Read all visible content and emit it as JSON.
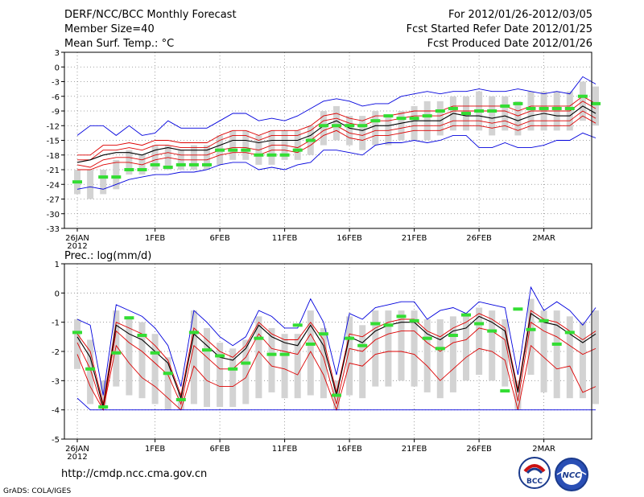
{
  "header": {
    "title": "DERF/NCC/BCC Monthly Forecast",
    "member_size": "Member Size=40",
    "variable": "Mean Surf. Temp.: °C",
    "period": "For 2012/01/26-2012/03/05",
    "started": "Fcst Started Refer Date 2012/01/25",
    "produced": "Fcst Produced Date 2012/01/26"
  },
  "footer": {
    "url": "http://cmdp.ncc.cma.gov.cn",
    "credit": "GrADS: COLA/IGES",
    "logo_bcc_text": "BCC",
    "logo_ncc_text": "NCC"
  },
  "colors": {
    "max_min": "#0000dd",
    "pct": "#dd0000",
    "mean": "#000000",
    "obs": "#33dd33",
    "box": "#d3d3d3",
    "grid": "#888888"
  },
  "chart_data": [
    {
      "type": "line",
      "title": "Mean Surf. Temp.: °C",
      "ylim": [
        -33,
        3
      ],
      "yticks": [
        3,
        0,
        -3,
        -6,
        -9,
        -12,
        -15,
        -18,
        -21,
        -24,
        -27,
        -30,
        -33
      ],
      "xticks": [
        {
          "day": 0,
          "label": "26JAN",
          "sub": "2012"
        },
        {
          "day": 6,
          "label": "1FEB"
        },
        {
          "day": 11,
          "label": "6FEB"
        },
        {
          "day": 16,
          "label": "11FEB"
        },
        {
          "day": 21,
          "label": "16FEB"
        },
        {
          "day": 26,
          "label": "21FEB"
        },
        {
          "day": 31,
          "label": "26FEB"
        },
        {
          "day": 36,
          "label": "2MAR"
        }
      ],
      "series": [
        {
          "name": "max",
          "values": [
            -14,
            -12,
            -12,
            -14,
            -12,
            -14,
            -13.5,
            -11,
            -12.5,
            -12.5,
            -12.5,
            -11,
            -9.5,
            -9.5,
            -11,
            -10.5,
            -11,
            -10,
            -8.5,
            -7,
            -6.5,
            -7,
            -8,
            -7.5,
            -7.5,
            -6,
            -5.5,
            -5,
            -5.5,
            -5,
            -5,
            -4.5,
            -5,
            -5,
            -4.5,
            -5,
            -5.5,
            -5,
            -5.5,
            -2,
            -3.5
          ]
        },
        {
          "name": "p90",
          "values": [
            -18,
            -18,
            -16,
            -16,
            -15.5,
            -16,
            -15,
            -15,
            -15.5,
            -15.5,
            -15.5,
            -14,
            -13,
            -13,
            -14,
            -13,
            -13,
            -13,
            -12,
            -10,
            -9.5,
            -10.5,
            -11,
            -10,
            -10,
            -9.5,
            -9,
            -9,
            -9,
            -8,
            -8,
            -8,
            -8,
            -8,
            -9,
            -8,
            -8,
            -8,
            -8,
            -6,
            -7.5
          ]
        },
        {
          "name": "p75",
          "values": [
            -19,
            -19,
            -17,
            -17,
            -16.5,
            -17,
            -16,
            -16,
            -16.5,
            -16.5,
            -16.5,
            -15,
            -14,
            -14,
            -15,
            -14,
            -14,
            -14,
            -13,
            -11,
            -10.5,
            -11.5,
            -12,
            -11,
            -11,
            -10.5,
            -10,
            -10,
            -10,
            -9,
            -9,
            -9,
            -9,
            -9,
            -10,
            -9,
            -9,
            -9,
            -9,
            -7,
            -8.5
          ]
        },
        {
          "name": "mean",
          "values": [
            -19.5,
            -19,
            -18,
            -17.5,
            -17.5,
            -18,
            -17,
            -16.5,
            -17,
            -17,
            -17,
            -16,
            -15,
            -15,
            -15.5,
            -15,
            -15,
            -15,
            -14,
            -12,
            -11,
            -12.5,
            -13,
            -12,
            -12,
            -11.5,
            -11,
            -11,
            -11,
            -9.5,
            -10,
            -10,
            -10.5,
            -10,
            -11,
            -10,
            -9.5,
            -10,
            -10,
            -8,
            -9.5
          ]
        },
        {
          "name": "p25",
          "values": [
            -20,
            -20.5,
            -19,
            -18.5,
            -18.5,
            -19,
            -18,
            -17.5,
            -18,
            -18,
            -18,
            -17,
            -16.5,
            -16.5,
            -17,
            -16,
            -16,
            -16.5,
            -15,
            -13,
            -12,
            -13.5,
            -14,
            -13,
            -13,
            -12.5,
            -12,
            -12,
            -12,
            -11,
            -11,
            -11,
            -11.5,
            -11,
            -12,
            -11,
            -11,
            -11,
            -11,
            -9,
            -10.5
          ]
        },
        {
          "name": "p10",
          "values": [
            -21,
            -21,
            -20,
            -19.5,
            -19.5,
            -20,
            -19,
            -18.5,
            -19,
            -19,
            -19,
            -18,
            -17.5,
            -17.5,
            -18,
            -17,
            -17,
            -17.5,
            -16,
            -14,
            -13,
            -14.5,
            -15,
            -14,
            -14,
            -13.5,
            -13,
            -13,
            -13,
            -12,
            -12,
            -12,
            -12.5,
            -12,
            -13,
            -12,
            -12,
            -12,
            -12,
            -10,
            -11.5
          ]
        },
        {
          "name": "min",
          "values": [
            -25,
            -24.5,
            -25,
            -24,
            -23,
            -22.5,
            -22,
            -22,
            -21.5,
            -21.5,
            -21,
            -20,
            -19.5,
            -19.5,
            -21,
            -20.5,
            -21,
            -20,
            -19.5,
            -17,
            -17,
            -17.5,
            -18,
            -16,
            -15.5,
            -15.5,
            -15,
            -15.5,
            -15,
            -14,
            -14,
            -16.5,
            -16.5,
            -15.5,
            -16.5,
            -16.5,
            -16,
            -15,
            -15,
            -13.5,
            -14.5
          ]
        }
      ],
      "boxes": [
        [
          -26,
          -21
        ],
        [
          -27,
          -21
        ],
        [
          -26,
          -21
        ],
        [
          -25,
          -19
        ],
        [
          -22,
          -17
        ],
        [
          -22,
          -18
        ],
        [
          -21,
          -16
        ],
        [
          -21,
          -16
        ],
        [
          -21,
          -17
        ],
        [
          -21,
          -16
        ],
        [
          -21,
          -16
        ],
        [
          -20,
          -14
        ],
        [
          -19,
          -13
        ],
        [
          -19,
          -13
        ],
        [
          -20,
          -14
        ],
        [
          -20,
          -13
        ],
        [
          -19,
          -13
        ],
        [
          -19,
          -13
        ],
        [
          -18,
          -12
        ],
        [
          -16,
          -9
        ],
        [
          -15,
          -8
        ],
        [
          -16,
          -10
        ],
        [
          -17,
          -10
        ],
        [
          -16,
          -9
        ],
        [
          -16,
          -10
        ],
        [
          -15,
          -9
        ],
        [
          -15,
          -8
        ],
        [
          -15,
          -7
        ],
        [
          -14,
          -7
        ],
        [
          -13,
          -6
        ],
        [
          -13,
          -6
        ],
        [
          -13,
          -5
        ],
        [
          -14,
          -6
        ],
        [
          -13,
          -6
        ],
        [
          -14,
          -7
        ],
        [
          -13,
          -5
        ],
        [
          -13,
          -5
        ],
        [
          -13,
          -5
        ],
        [
          -13,
          -5
        ],
        [
          -11,
          -3
        ],
        [
          -12,
          -4
        ]
      ],
      "obs": [
        -23.5,
        null,
        -22.5,
        -22.5,
        -21,
        -21,
        -20,
        -20.5,
        -20,
        -20,
        -20,
        -17,
        -17,
        -17,
        -18,
        -18,
        -18,
        -17,
        -15,
        -12,
        -12,
        -12,
        -12,
        -11,
        -10,
        -10.5,
        -10.5,
        -10,
        -9,
        -8.5,
        -9.5,
        -9,
        -9,
        -8,
        -7.5,
        -8.5,
        -8.5,
        -8.5,
        -8.5,
        -6,
        -7.5
      ]
    },
    {
      "type": "line",
      "title": "Prec.: log(mm/d)",
      "ylim": [
        -5,
        1
      ],
      "yticks": [
        1,
        0,
        -1,
        -2,
        -3,
        -4,
        -5
      ],
      "xticks": [
        {
          "day": 0,
          "label": "26JAN",
          "sub": "2012"
        },
        {
          "day": 6,
          "label": "1FEB"
        },
        {
          "day": 11,
          "label": "6FEB"
        },
        {
          "day": 16,
          "label": "11FEB"
        },
        {
          "day": 21,
          "label": "16FEB"
        },
        {
          "day": 26,
          "label": "21FEB"
        },
        {
          "day": 31,
          "label": "26FEB"
        },
        {
          "day": 36,
          "label": "2MAR"
        }
      ],
      "series": [
        {
          "name": "max",
          "values": [
            -0.9,
            -1.1,
            -3.5,
            -0.4,
            -0.6,
            -0.8,
            -1.2,
            -1.8,
            -3.2,
            -0.6,
            -1.0,
            -1.5,
            -1.8,
            -1.5,
            -0.6,
            -0.8,
            -1.2,
            -1.2,
            -0.2,
            -1.0,
            -2.8,
            -0.7,
            -0.9,
            -0.5,
            -0.4,
            -0.3,
            -0.3,
            -0.9,
            -0.6,
            -0.5,
            -0.7,
            -0.3,
            -0.4,
            -0.5,
            -2.8,
            0.2,
            -0.6,
            -0.3,
            -0.6,
            -1.1,
            -0.5
          ]
        },
        {
          "name": "p75",
          "values": [
            -1.4,
            -2.0,
            -3.8,
            -1.0,
            -1.2,
            -1.4,
            -1.8,
            -2.3,
            -3.5,
            -1.2,
            -1.6,
            -2.0,
            -2.2,
            -1.8,
            -1.0,
            -1.4,
            -1.6,
            -1.6,
            -1.0,
            -1.6,
            -3.4,
            -1.4,
            -1.5,
            -1.2,
            -1.0,
            -0.9,
            -0.9,
            -1.3,
            -1.5,
            -1.2,
            -1.0,
            -0.7,
            -0.9,
            -1.2,
            -3.3,
            -0.6,
            -0.9,
            -1.0,
            -1.3,
            -1.6,
            -1.3
          ]
        },
        {
          "name": "mean",
          "values": [
            -1.5,
            -2.2,
            -3.9,
            -1.1,
            -1.4,
            -1.6,
            -2.0,
            -2.4,
            -3.6,
            -1.4,
            -1.8,
            -2.2,
            -2.3,
            -1.9,
            -1.1,
            -1.5,
            -1.7,
            -1.8,
            -1.1,
            -1.8,
            -3.5,
            -1.5,
            -1.7,
            -1.3,
            -1.1,
            -1.0,
            -1.0,
            -1.4,
            -1.6,
            -1.3,
            -1.2,
            -0.8,
            -1.0,
            -1.3,
            -3.4,
            -0.7,
            -1.0,
            -1.1,
            -1.4,
            -1.7,
            -1.4
          ]
        },
        {
          "name": "p50",
          "values": [
            -1.7,
            -2.6,
            -4.0,
            -1.3,
            -1.7,
            -2.0,
            -2.4,
            -2.8,
            -3.8,
            -1.8,
            -2.2,
            -2.6,
            -2.6,
            -2.2,
            -1.4,
            -1.9,
            -2.0,
            -2.1,
            -1.4,
            -2.2,
            -3.8,
            -1.9,
            -2.0,
            -1.6,
            -1.4,
            -1.3,
            -1.3,
            -1.7,
            -2.0,
            -1.7,
            -1.6,
            -1.2,
            -1.3,
            -1.6,
            -3.7,
            -1.0,
            -1.3,
            -1.5,
            -1.8,
            -2.1,
            -1.9
          ]
        },
        {
          "name": "p25",
          "values": [
            -2.1,
            -3.2,
            -4.0,
            -1.8,
            -2.4,
            -2.9,
            -3.2,
            -3.6,
            -4.0,
            -2.5,
            -3.0,
            -3.2,
            -3.2,
            -2.9,
            -2.0,
            -2.5,
            -2.6,
            -2.8,
            -2.0,
            -2.8,
            -4.0,
            -2.4,
            -2.5,
            -2.1,
            -2.0,
            -2.0,
            -2.1,
            -2.5,
            -3.0,
            -2.6,
            -2.2,
            -1.9,
            -2.0,
            -2.3,
            -4.0,
            -1.8,
            -2.2,
            -2.6,
            -2.5,
            -3.4,
            -3.2
          ]
        },
        {
          "name": "min",
          "values": [
            -3.6,
            -4.0,
            -4.0,
            -4.0,
            -4.0,
            -4.0,
            -4.0,
            -4.0,
            -4.0,
            -4.0,
            -4.0,
            -4.0,
            -4.0,
            -4.0,
            -4.0,
            -4.0,
            -4.0,
            -4.0,
            -4.0,
            -4.0,
            -4.0,
            -4.0,
            -4.0,
            -4.0,
            -4.0,
            -4.0,
            -4.0,
            -4.0,
            -4.0,
            -4.0,
            -4.0,
            -4.0,
            -4.0,
            -4.0,
            -4.0,
            -4.0,
            -4.0,
            -4.0,
            -4.0,
            -4.0,
            -4.0
          ]
        }
      ],
      "boxes": [
        [
          -2.6,
          -0.9
        ],
        [
          -3.8,
          -1.6
        ],
        [
          -4.0,
          -3.0
        ],
        [
          -3.2,
          -0.6
        ],
        [
          -3.5,
          -0.8
        ],
        [
          -3.6,
          -1.0
        ],
        [
          -3.8,
          -1.4
        ],
        [
          -4.0,
          -2.2
        ],
        [
          -4.0,
          -3.4
        ],
        [
          -3.8,
          -0.6
        ],
        [
          -3.9,
          -1.2
        ],
        [
          -3.9,
          -1.7
        ],
        [
          -3.9,
          -1.9
        ],
        [
          -3.8,
          -1.6
        ],
        [
          -3.6,
          -0.8
        ],
        [
          -3.4,
          -1.2
        ],
        [
          -3.6,
          -1.4
        ],
        [
          -3.6,
          -1.4
        ],
        [
          -3.5,
          -0.6
        ],
        [
          -3.6,
          -1.2
        ],
        [
          -4.0,
          -3.0
        ],
        [
          -3.5,
          -0.8
        ],
        [
          -3.6,
          -1.1
        ],
        [
          -3.2,
          -0.6
        ],
        [
          -3.2,
          -0.6
        ],
        [
          -3.0,
          -0.6
        ],
        [
          -3.2,
          -0.6
        ],
        [
          -3.4,
          -0.9
        ],
        [
          -3.6,
          -0.9
        ],
        [
          -3.4,
          -0.8
        ],
        [
          -3.0,
          -0.7
        ],
        [
          -2.8,
          -0.5
        ],
        [
          -3.0,
          -0.6
        ],
        [
          -3.2,
          -0.9
        ],
        [
          -4.0,
          -3.0
        ],
        [
          -2.8,
          -0.2
        ],
        [
          -3.4,
          -0.6
        ],
        [
          -3.6,
          -0.6
        ],
        [
          -3.6,
          -0.8
        ],
        [
          -3.6,
          -1.0
        ],
        [
          -3.8,
          -0.6
        ]
      ],
      "obs": [
        -1.35,
        -2.6,
        -3.9,
        -2.05,
        -0.85,
        -1.45,
        -2.05,
        -2.75,
        -3.65,
        -1.35,
        -1.95,
        -2.15,
        -2.6,
        -2.4,
        -1.55,
        -2.1,
        -2.1,
        -1.1,
        -1.75,
        -1.4,
        -3.5,
        -1.55,
        -1.8,
        -1.05,
        -1.1,
        -0.8,
        -0.95,
        -1.55,
        -1.9,
        -1.45,
        -0.75,
        -1.05,
        -1.3,
        -3.35,
        -0.55,
        -1.25,
        -0.95,
        -1.75,
        -1.35,
        null,
        null
      ]
    }
  ]
}
